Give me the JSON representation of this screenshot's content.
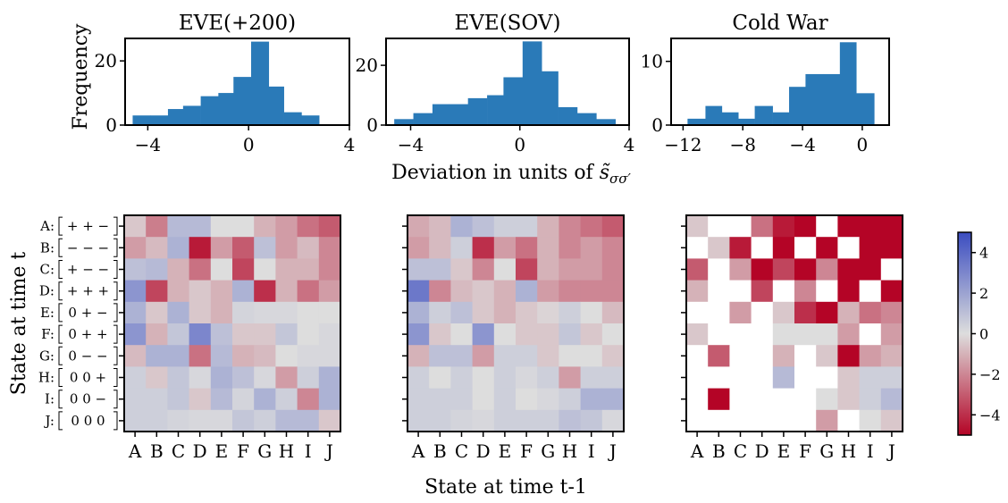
{
  "figure": {
    "xlabel_top_prefix": "Deviation in units of ",
    "xlabel_top_symbol": "s̃",
    "xlabel_top_subscript": "σσ′",
    "ylabel_top": "Frequency",
    "xlabel_bottom": "State at time t-1",
    "ylabel_bottom": "State at time t"
  },
  "states": [
    "A",
    "B",
    "C",
    "D",
    "E",
    "F",
    "G",
    "H",
    "I",
    "J"
  ],
  "state_labels": [
    "A:",
    "B:",
    "C:",
    "D:",
    "E:",
    "F:",
    "G:",
    "H:",
    "I:",
    "J:"
  ],
  "state_codes": [
    "+ + −",
    "− − −",
    "+ − −",
    "+ + +",
    "0 + −",
    "0 + +",
    "0 − −",
    "0 0 +",
    "0 0 −",
    "0 0 0"
  ],
  "colors": {
    "bar": "#2a7ab8",
    "colormap_low": "#b40426",
    "colormap_mid": "#dddddd",
    "colormap_high": "#3b4cc0",
    "missing": "#ffffff"
  },
  "chart_data": [
    {
      "type": "bar",
      "title": "EVE(+200)",
      "bin_edges": [
        -4.6,
        -3.9,
        -3.2,
        -2.6,
        -1.9,
        -1.2,
        -0.6,
        0.1,
        0.8,
        1.4,
        2.1,
        2.8
      ],
      "values": [
        3,
        3,
        5,
        6,
        9,
        10,
        15,
        26,
        12,
        4,
        3
      ],
      "xlim": [
        -4.9,
        4.0
      ],
      "ylim": [
        0,
        27
      ],
      "xticks": [
        -4,
        0,
        4
      ],
      "xtick_labels": [
        "−4",
        "0",
        "4"
      ],
      "yticks": [
        0,
        20
      ],
      "ytick_labels": [
        "0",
        "20"
      ]
    },
    {
      "type": "bar",
      "title": "EVE(SOV)",
      "bin_edges": [
        -4.6,
        -3.9,
        -3.2,
        -2.6,
        -1.9,
        -1.2,
        -0.6,
        0.1,
        0.8,
        1.4,
        2.1,
        2.8,
        3.5
      ],
      "values": [
        2,
        4,
        7,
        7,
        9,
        10,
        16,
        28,
        18,
        6,
        4,
        2
      ],
      "xlim": [
        -4.9,
        4.0
      ],
      "ylim": [
        0,
        29
      ],
      "xticks": [
        -4,
        0,
        4
      ],
      "xtick_labels": [
        "−4",
        "0",
        "4"
      ],
      "yticks": [
        0,
        20
      ],
      "ytick_labels": [
        "0",
        "20"
      ]
    },
    {
      "type": "bar",
      "title": "Cold War",
      "bin_edges": [
        -11.7,
        -10.5,
        -9.4,
        -8.3,
        -7.2,
        -6.0,
        -4.9,
        -3.8,
        -2.6,
        -1.5,
        -0.4,
        0.8
      ],
      "values": [
        1,
        3,
        2,
        1,
        3,
        2,
        6,
        8,
        8,
        13,
        5
      ],
      "xlim": [
        -12.8,
        1.8
      ],
      "ylim": [
        0,
        13.6
      ],
      "xticks": [
        -12,
        -8,
        -4,
        0
      ],
      "xtick_labels": [
        "−12",
        "−8",
        "−4",
        "0"
      ],
      "yticks": [
        0,
        10
      ],
      "ytick_labels": [
        "0",
        "10"
      ]
    },
    {
      "type": "heatmap",
      "title": "",
      "x_label": "State at time t-1",
      "y_label": "State at time t",
      "values": [
        [
          -0.5,
          -2.2,
          1.2,
          1.2,
          0,
          0,
          -1,
          -1.5,
          -2.5,
          -3
        ],
        [
          -1.5,
          -0.8,
          1.5,
          -4.5,
          -1.5,
          -3,
          1,
          -1.5,
          -0.8,
          -2
        ],
        [
          1,
          1.2,
          -1,
          -2.5,
          0,
          -3.5,
          0,
          -1,
          -1,
          -2
        ],
        [
          2.5,
          -3.5,
          -1,
          -0.5,
          -1,
          1.5,
          -4,
          -1,
          -2.5,
          -1.5
        ],
        [
          1.5,
          -0.5,
          1.5,
          -0.5,
          -1,
          0.3,
          0.2,
          0.2,
          0,
          0
        ],
        [
          2.5,
          -1,
          0.8,
          3,
          1,
          -0.5,
          -0.5,
          0.8,
          0,
          0.2
        ],
        [
          -0.8,
          1.5,
          1.5,
          -2.5,
          1.2,
          -1,
          -0.8,
          0,
          0.2,
          0.2
        ],
        [
          0.5,
          -0.5,
          0.8,
          0.2,
          1.5,
          1,
          0.2,
          -1.5,
          0.5,
          1.5
        ],
        [
          0.5,
          0.5,
          0.8,
          -0.5,
          1.2,
          0.3,
          1.5,
          0.5,
          -2,
          1.5
        ],
        [
          0.5,
          0.5,
          0.3,
          0.2,
          0.2,
          0.8,
          0.5,
          1.2,
          1.2,
          -0.5
        ]
      ]
    },
    {
      "type": "heatmap",
      "title": "",
      "x_label": "State at time t-1",
      "y_label": "State at time t",
      "values": [
        [
          -1.2,
          -0.8,
          1.5,
          1,
          0.5,
          0.5,
          -1,
          -2,
          -2.5,
          -3
        ],
        [
          -1.5,
          -0.8,
          0.5,
          -4,
          -1.5,
          -2.5,
          -1,
          -2,
          -1.5,
          -2
        ],
        [
          1,
          1,
          -0.5,
          -2,
          0,
          -3.5,
          -1,
          -1.5,
          -1.5,
          -2
        ],
        [
          3.5,
          -2,
          -0.8,
          -0.5,
          -1,
          1.5,
          -1.5,
          -2,
          -2,
          -2
        ],
        [
          1.5,
          0.5,
          1,
          -0.5,
          -1,
          -0.5,
          -0.2,
          0.5,
          0,
          -0.8
        ],
        [
          2.5,
          -0.5,
          0,
          2.5,
          0,
          -0.5,
          -0.5,
          0.8,
          -0.5,
          0
        ],
        [
          -1,
          1,
          1,
          -1.5,
          0.5,
          0.5,
          -0.5,
          0,
          0,
          -0.5
        ],
        [
          0.5,
          0,
          0.5,
          0,
          0.5,
          0.2,
          0.5,
          -1.5,
          0.5,
          0.5
        ],
        [
          0.5,
          0.5,
          0.5,
          0,
          0.5,
          0,
          0.2,
          0.5,
          1.5,
          1.5
        ],
        [
          0.5,
          0.5,
          0.3,
          0.2,
          0.5,
          0.5,
          0.5,
          1,
          0.8,
          0.2
        ]
      ]
    },
    {
      "type": "heatmap",
      "title": "",
      "x_label": "State at time t-1",
      "y_label": "State at time t",
      "missing_value": null,
      "values": [
        [
          -0.5,
          null,
          null,
          -2.5,
          -4.5,
          -5,
          null,
          -5,
          -5,
          -5
        ],
        [
          null,
          -0.5,
          -4.5,
          null,
          -5,
          null,
          -5,
          null,
          -5,
          -5
        ],
        [
          -3,
          null,
          -1.5,
          -5,
          -3.5,
          -5,
          -2,
          -5,
          -5,
          null
        ],
        [
          -1,
          null,
          null,
          -3.5,
          null,
          -2,
          null,
          -5,
          null,
          -5
        ],
        [
          null,
          null,
          -1.5,
          null,
          -0.5,
          -4,
          -5,
          -1,
          -2.5,
          -2
        ],
        [
          -0.5,
          null,
          null,
          null,
          0,
          0,
          0,
          -1.5,
          null,
          -1.5
        ],
        [
          null,
          -3,
          null,
          null,
          -1,
          null,
          -0.5,
          -5,
          -1.5,
          -1
        ],
        [
          null,
          null,
          null,
          null,
          1.2,
          null,
          null,
          -0.5,
          0.5,
          0.5
        ],
        [
          null,
          -5,
          null,
          null,
          null,
          null,
          0,
          -0.5,
          0.5,
          1.2
        ],
        [
          null,
          null,
          null,
          null,
          null,
          null,
          -1.5,
          null,
          0,
          -0.5
        ]
      ]
    },
    {
      "type": "colorbar",
      "vmin": -5,
      "vmax": 5,
      "ticks": [
        4,
        2,
        0,
        -2,
        -4
      ],
      "tick_labels": [
        "4",
        "2",
        "0",
        "−2",
        "−4"
      ]
    }
  ]
}
